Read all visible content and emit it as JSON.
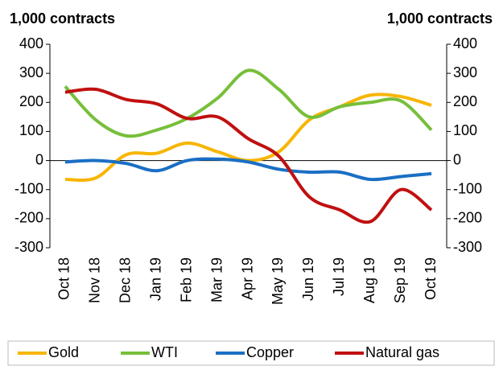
{
  "chart_data": {
    "type": "line",
    "y_axis_label": "1,000 contracts",
    "y2_axis_label": "1,000 contracts",
    "categories": [
      "Oct 18",
      "Nov 18",
      "Dec 18",
      "Jan 19",
      "Feb 19",
      "Mar 19",
      "Apr 19",
      "May 19",
      "Jun 19",
      "Jul 19",
      "Aug 19",
      "Sep 19",
      "Oct 19"
    ],
    "series": [
      {
        "name": "Gold",
        "color": "#f7b500",
        "values": [
          -65,
          -60,
          20,
          25,
          60,
          30,
          0,
          30,
          140,
          185,
          225,
          220,
          190
        ]
      },
      {
        "name": "WTI",
        "color": "#77bf3a",
        "values": [
          255,
          140,
          85,
          105,
          145,
          215,
          310,
          245,
          150,
          185,
          200,
          205,
          105
        ]
      },
      {
        "name": "Copper",
        "color": "#1a6fc4",
        "values": [
          -5,
          0,
          -10,
          -35,
          0,
          5,
          -5,
          -30,
          -40,
          -40,
          -65,
          -55,
          -45
        ]
      },
      {
        "name": "Natural gas",
        "color": "#c01010",
        "values": [
          235,
          245,
          210,
          195,
          145,
          150,
          75,
          15,
          -125,
          -170,
          -210,
          -100,
          -170
        ]
      }
    ],
    "ylim": [
      -300,
      400
    ],
    "yticks": [
      -300,
      -200,
      -100,
      0,
      100,
      200,
      300,
      400
    ],
    "y2lim": [
      -300,
      400
    ],
    "y2ticks": [
      -300,
      -200,
      -100,
      0,
      100,
      200,
      300,
      400
    ],
    "legend": "bottom"
  }
}
